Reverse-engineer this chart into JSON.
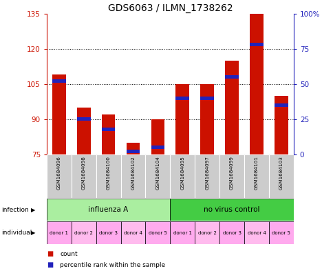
{
  "title": "GDS6063 / ILMN_1738262",
  "samples": [
    "GSM1684096",
    "GSM1684098",
    "GSM1684100",
    "GSM1684102",
    "GSM1684104",
    "GSM1684095",
    "GSM1684097",
    "GSM1684099",
    "GSM1684101",
    "GSM1684103"
  ],
  "counts": [
    109,
    95,
    92,
    80,
    90,
    105,
    105,
    115,
    135,
    100
  ],
  "percentile_ranks": [
    52,
    25,
    18,
    2,
    5,
    40,
    40,
    55,
    78,
    35
  ],
  "ylim_left": [
    75,
    135
  ],
  "ylim_right": [
    0,
    100
  ],
  "yticks_left": [
    75,
    90,
    105,
    120,
    135
  ],
  "yticks_right": [
    0,
    25,
    50,
    75,
    100
  ],
  "ytick_right_labels": [
    "0",
    "25",
    "50",
    "75",
    "100%"
  ],
  "bar_color": "#cc1100",
  "percentile_color": "#2222bb",
  "bar_width": 0.55,
  "infection_groups": [
    {
      "label": "influenza A",
      "start": 0,
      "end": 5,
      "color": "#aaeea0"
    },
    {
      "label": "no virus control",
      "start": 5,
      "end": 10,
      "color": "#44cc44"
    }
  ],
  "donors": [
    "donor 1",
    "donor 2",
    "donor 3",
    "donor 4",
    "donor 5",
    "donor 1",
    "donor 2",
    "donor 3",
    "donor 4",
    "donor 5"
  ],
  "donor_bg_colors": [
    "#ffaaee",
    "#ffbbee",
    "#ffaaee",
    "#ffbbee",
    "#ffaaee",
    "#ffaaee",
    "#ffbbee",
    "#ffaaee",
    "#ffbbee",
    "#ffaaee"
  ],
  "axis_left_color": "#cc1100",
  "axis_right_color": "#2222bb",
  "title_fontsize": 10,
  "legend_count_color": "#cc1100",
  "legend_percentile_color": "#2222bb",
  "sample_bg_color": "#cccccc"
}
